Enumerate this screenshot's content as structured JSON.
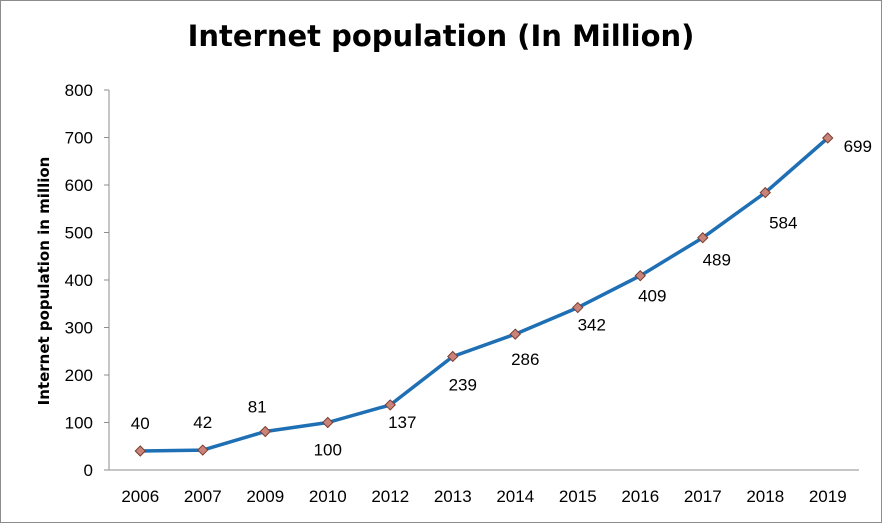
{
  "chart_data": {
    "type": "line",
    "title": "Internet population (In Million)",
    "xlabel": "",
    "ylabel": "Internet population in million",
    "categories": [
      "2006",
      "2007",
      "2009",
      "2010",
      "2012",
      "2013",
      "2014",
      "2015",
      "2016",
      "2017",
      "2018",
      "2019"
    ],
    "series": [
      {
        "values": [
          40,
          42,
          81,
          100,
          137,
          239,
          286,
          342,
          409,
          489,
          584,
          699
        ]
      }
    ],
    "ylim": [
      0,
      800
    ],
    "yticks": [
      0,
      100,
      200,
      300,
      400,
      500,
      600,
      700,
      800
    ],
    "grid": false,
    "legend": "none",
    "line_color": "#1f6fb5",
    "marker_color": "#c9847a"
  }
}
